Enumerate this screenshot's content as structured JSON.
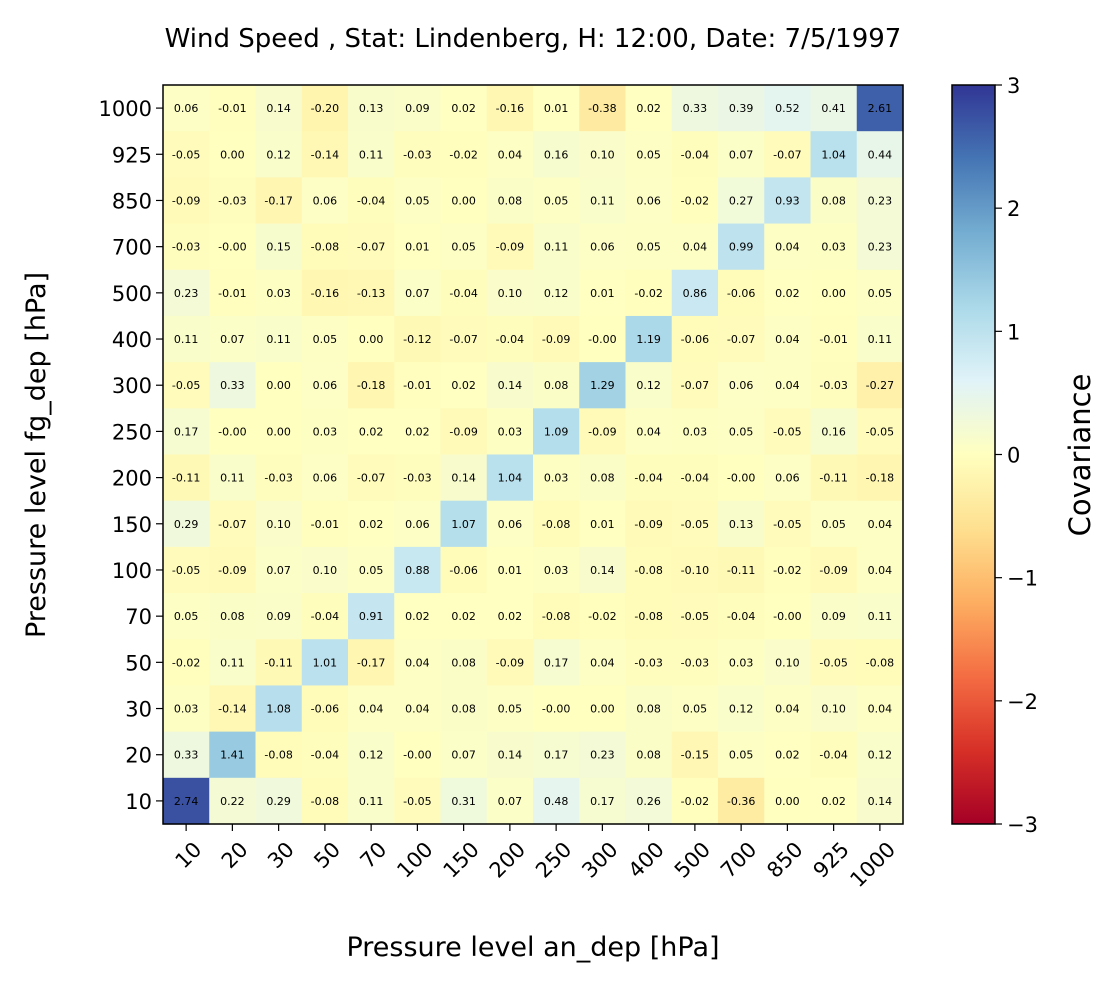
{
  "chart_data": {
    "type": "heatmap",
    "title": "Wind Speed , Stat: Lindenberg, H: 12:00, Date: 7/5/1997",
    "xlabel": "Pressure level an_dep [hPa]",
    "ylabel": "Pressure level fg_dep [hPa]",
    "x_categories": [
      "10",
      "20",
      "30",
      "50",
      "70",
      "100",
      "150",
      "200",
      "250",
      "300",
      "400",
      "500",
      "700",
      "850",
      "925",
      "1000"
    ],
    "y_categories_top_to_bottom": [
      "1000",
      "925",
      "850",
      "700",
      "500",
      "400",
      "300",
      "250",
      "200",
      "150",
      "100",
      "70",
      "50",
      "30",
      "20",
      "10"
    ],
    "values": [
      [
        "0.06",
        "-0.01",
        "0.14",
        "-0.20",
        "0.13",
        "0.09",
        "0.02",
        "-0.16",
        "0.01",
        "-0.38",
        "0.02",
        "0.33",
        "0.39",
        "0.52",
        "0.41",
        "2.61"
      ],
      [
        "-0.05",
        "0.00",
        "0.12",
        "-0.14",
        "0.11",
        "-0.03",
        "-0.02",
        "0.04",
        "0.16",
        "0.10",
        "0.05",
        "-0.04",
        "0.07",
        "-0.07",
        "1.04",
        "0.44"
      ],
      [
        "-0.09",
        "-0.03",
        "-0.17",
        "0.06",
        "-0.04",
        "0.05",
        "0.00",
        "0.08",
        "0.05",
        "0.11",
        "0.06",
        "-0.02",
        "0.27",
        "0.93",
        "0.08",
        "0.23"
      ],
      [
        "-0.03",
        "-0.00",
        "0.15",
        "-0.08",
        "-0.07",
        "0.01",
        "0.05",
        "-0.09",
        "0.11",
        "0.06",
        "0.05",
        "0.04",
        "0.99",
        "0.04",
        "0.03",
        "0.23"
      ],
      [
        "0.23",
        "-0.01",
        "0.03",
        "-0.16",
        "-0.13",
        "0.07",
        "-0.04",
        "0.10",
        "0.12",
        "0.01",
        "-0.02",
        "0.86",
        "-0.06",
        "0.02",
        "0.00",
        "0.05"
      ],
      [
        "0.11",
        "0.07",
        "0.11",
        "0.05",
        "0.00",
        "-0.12",
        "-0.07",
        "-0.04",
        "-0.09",
        "-0.00",
        "1.19",
        "-0.06",
        "-0.07",
        "0.04",
        "-0.01",
        "0.11"
      ],
      [
        "-0.05",
        "0.33",
        "0.00",
        "0.06",
        "-0.18",
        "-0.01",
        "0.02",
        "0.14",
        "0.08",
        "1.29",
        "0.12",
        "-0.07",
        "0.06",
        "0.04",
        "-0.03",
        "-0.27"
      ],
      [
        "0.17",
        "-0.00",
        "0.00",
        "0.03",
        "0.02",
        "0.02",
        "-0.09",
        "0.03",
        "1.09",
        "-0.09",
        "0.04",
        "0.03",
        "0.05",
        "-0.05",
        "0.16",
        "-0.05"
      ],
      [
        "-0.11",
        "0.11",
        "-0.03",
        "0.06",
        "-0.07",
        "-0.03",
        "0.14",
        "1.04",
        "0.03",
        "0.08",
        "-0.04",
        "-0.04",
        "-0.00",
        "0.06",
        "-0.11",
        "-0.18"
      ],
      [
        "0.29",
        "-0.07",
        "0.10",
        "-0.01",
        "0.02",
        "0.06",
        "1.07",
        "0.06",
        "-0.08",
        "0.01",
        "-0.09",
        "-0.05",
        "0.13",
        "-0.05",
        "0.05",
        "0.04"
      ],
      [
        "-0.05",
        "-0.09",
        "0.07",
        "0.10",
        "0.05",
        "0.88",
        "-0.06",
        "0.01",
        "0.03",
        "0.14",
        "-0.08",
        "-0.10",
        "-0.11",
        "-0.02",
        "-0.09",
        "0.04"
      ],
      [
        "0.05",
        "0.08",
        "0.09",
        "-0.04",
        "0.91",
        "0.02",
        "0.02",
        "0.02",
        "-0.08",
        "-0.02",
        "-0.08",
        "-0.05",
        "-0.04",
        "-0.00",
        "0.09",
        "0.11"
      ],
      [
        "-0.02",
        "0.11",
        "-0.11",
        "1.01",
        "-0.17",
        "0.04",
        "0.08",
        "-0.09",
        "0.17",
        "0.04",
        "-0.03",
        "-0.03",
        "0.03",
        "0.10",
        "-0.05",
        "-0.08"
      ],
      [
        "0.03",
        "-0.14",
        "1.08",
        "-0.06",
        "0.04",
        "0.04",
        "0.08",
        "0.05",
        "-0.00",
        "0.00",
        "0.08",
        "0.05",
        "0.12",
        "0.04",
        "0.10",
        "0.04"
      ],
      [
        "0.33",
        "1.41",
        "-0.08",
        "-0.04",
        "0.12",
        "-0.00",
        "0.07",
        "0.14",
        "0.17",
        "0.23",
        "0.08",
        "-0.15",
        "0.05",
        "0.02",
        "-0.04",
        "0.12"
      ],
      [
        "2.74",
        "0.22",
        "0.29",
        "-0.08",
        "0.11",
        "-0.05",
        "0.31",
        "0.07",
        "0.48",
        "0.17",
        "0.26",
        "-0.02",
        "-0.36",
        "0.00",
        "0.02",
        "0.14"
      ]
    ],
    "colorbar": {
      "label": "Covariance",
      "range": [
        -3,
        3
      ],
      "ticks": [
        "3",
        "2",
        "1",
        "0",
        "−1",
        "−2",
        "−3"
      ],
      "tick_values": [
        3,
        2,
        1,
        0,
        -1,
        -2,
        -3
      ],
      "colormap": "RdYlBu",
      "colormap_stops": [
        "#a50026",
        "#d73027",
        "#f46d43",
        "#fdae61",
        "#fee090",
        "#ffffbf",
        "#e0f3f8",
        "#abd9e9",
        "#74add1",
        "#4575b4",
        "#313695"
      ]
    },
    "grid": false
  }
}
